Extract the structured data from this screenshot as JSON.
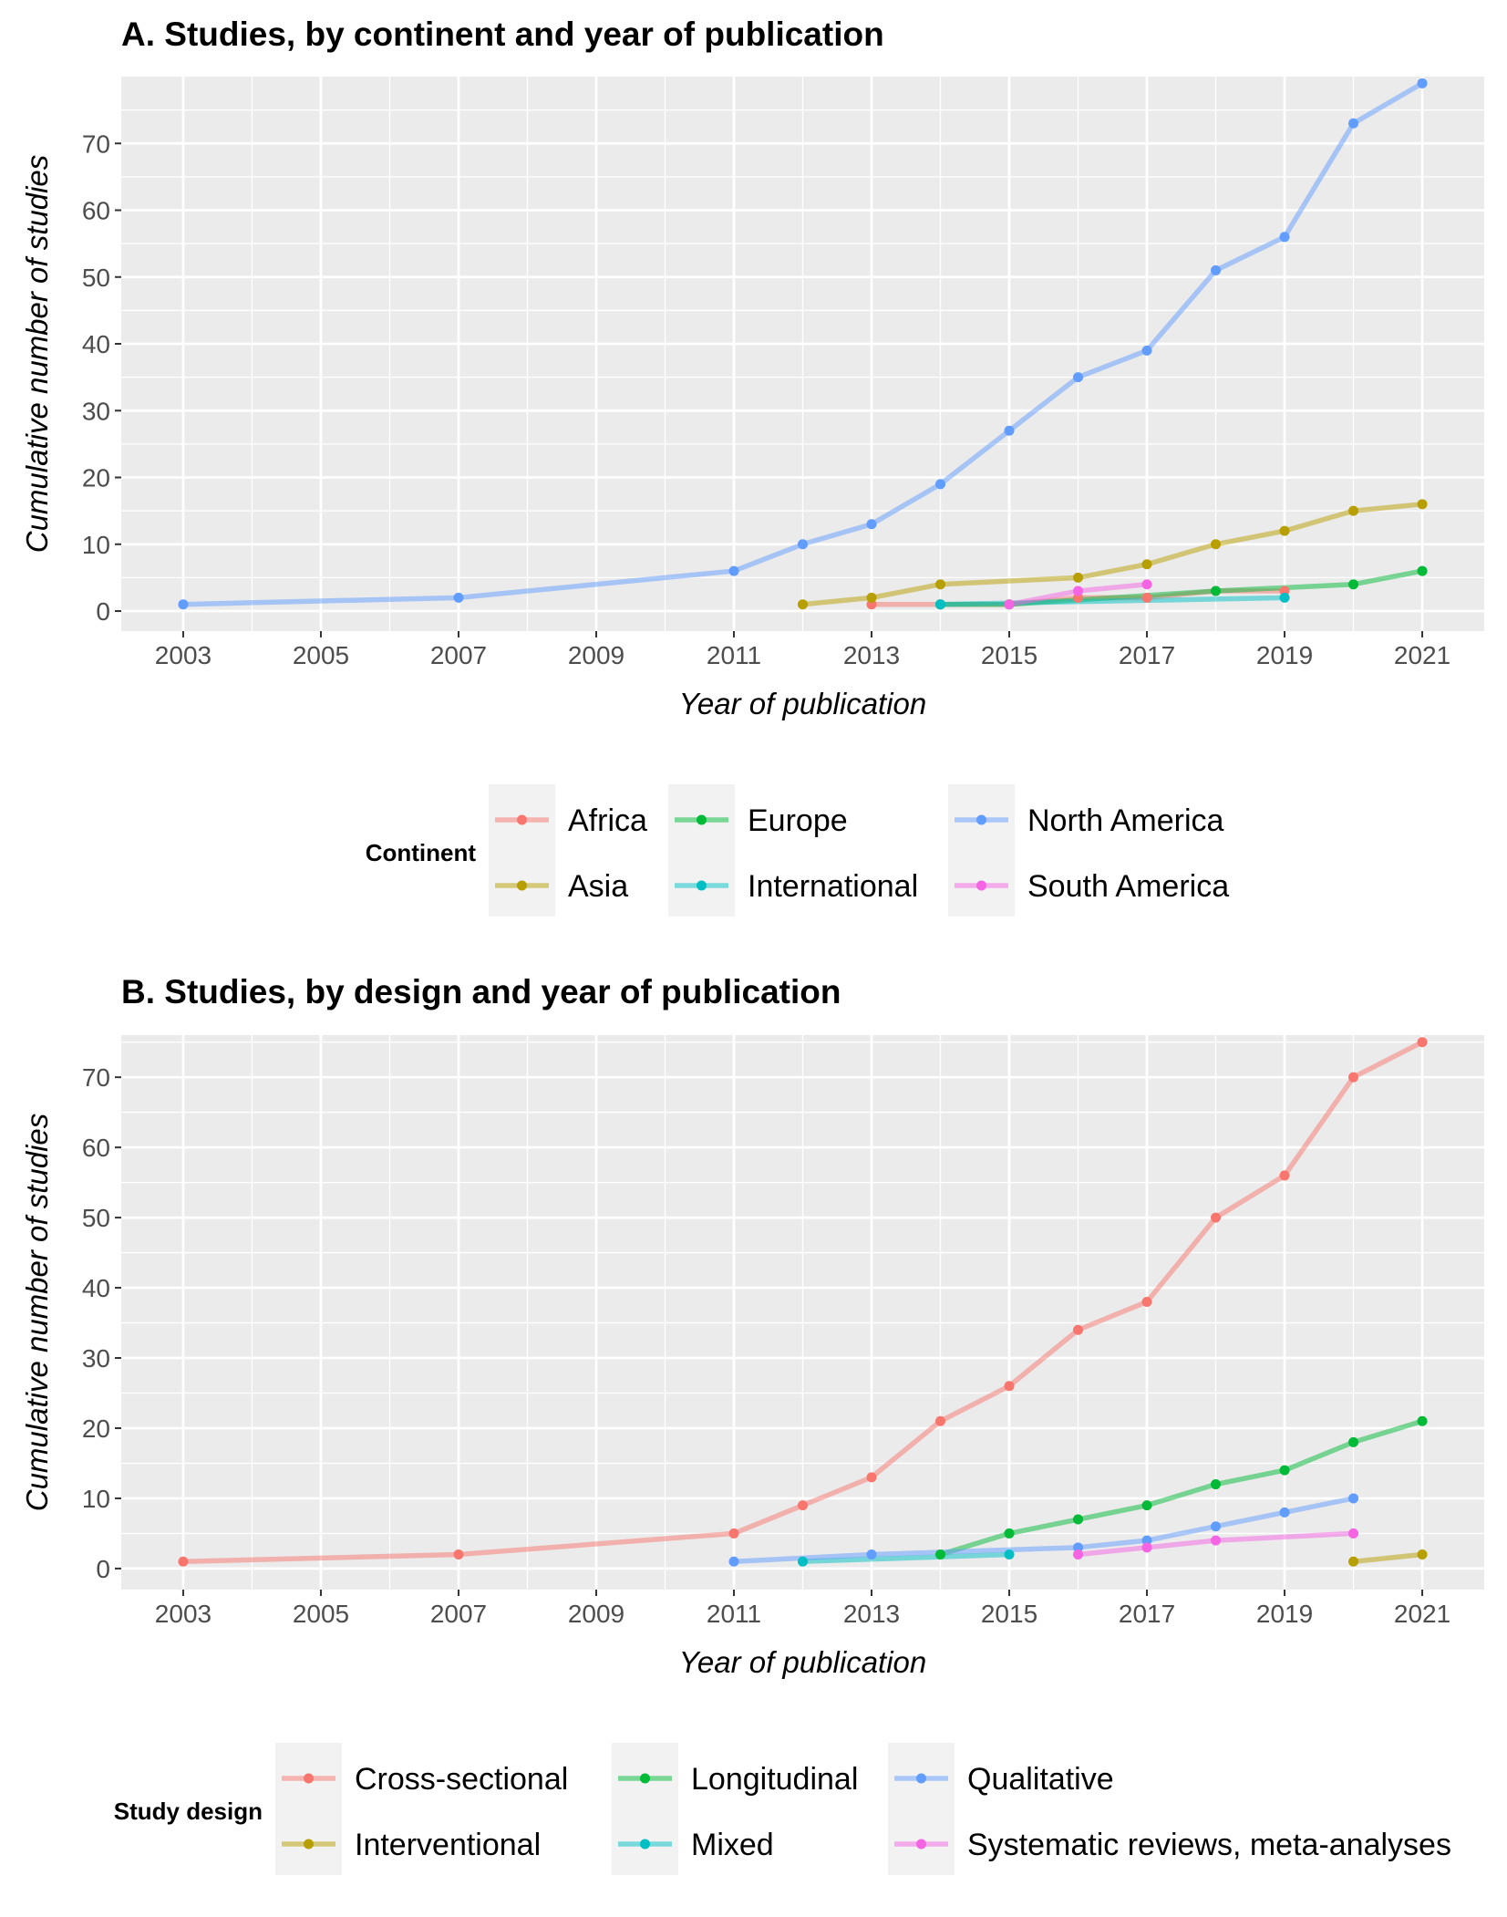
{
  "chart_data": [
    {
      "type": "line",
      "title": "A. Studies, by continent and year of publication",
      "xlabel": "Year of publication",
      "ylabel": "Cumulative number of studies",
      "xlim": [
        2002.1,
        2021.9
      ],
      "ylim": [
        -3,
        80
      ],
      "x_ticks": [
        2003,
        2005,
        2007,
        2009,
        2011,
        2013,
        2015,
        2017,
        2019,
        2021
      ],
      "y_ticks": [
        0,
        10,
        20,
        30,
        40,
        50,
        60,
        70
      ],
      "grid": true,
      "legend": {
        "title": "Continent",
        "position": "bottom",
        "columns": [
          [
            "Africa",
            "Asia"
          ],
          [
            "Europe",
            "International"
          ],
          [
            "North America",
            "South America"
          ]
        ]
      },
      "series": [
        {
          "name": "Africa",
          "color": "#F8766D",
          "x": [
            2013,
            2014,
            2015,
            2016,
            2017,
            2018,
            2019
          ],
          "y": [
            1,
            1,
            1,
            2,
            2,
            3,
            3
          ]
        },
        {
          "name": "Asia",
          "color": "#B79F00",
          "x": [
            2012,
            2013,
            2014,
            2016,
            2017,
            2018,
            2019,
            2020,
            2021
          ],
          "y": [
            1,
            2,
            4,
            5,
            7,
            10,
            12,
            15,
            16
          ]
        },
        {
          "name": "Europe",
          "color": "#00BA38",
          "x": [
            2014,
            2015,
            2018,
            2020,
            2021
          ],
          "y": [
            1,
            1,
            3,
            4,
            6
          ]
        },
        {
          "name": "International",
          "color": "#00BFC4",
          "x": [
            2014,
            2019
          ],
          "y": [
            1,
            2
          ]
        },
        {
          "name": "North America",
          "color": "#619CFF",
          "x": [
            2003,
            2007,
            2011,
            2012,
            2013,
            2014,
            2015,
            2016,
            2017,
            2018,
            2019,
            2020,
            2021
          ],
          "y": [
            1,
            2,
            6,
            10,
            13,
            19,
            27,
            35,
            39,
            51,
            56,
            73,
            79
          ]
        },
        {
          "name": "South America",
          "color": "#F564E3",
          "x": [
            2015,
            2016,
            2017
          ],
          "y": [
            1,
            3,
            4
          ]
        }
      ]
    },
    {
      "type": "line",
      "title": "B. Studies, by design and year of publication",
      "xlabel": "Year of publication",
      "ylabel": "Cumulative number of studies",
      "xlim": [
        2002.1,
        2021.9
      ],
      "ylim": [
        -3,
        76
      ],
      "x_ticks": [
        2003,
        2005,
        2007,
        2009,
        2011,
        2013,
        2015,
        2017,
        2019,
        2021
      ],
      "y_ticks": [
        0,
        10,
        20,
        30,
        40,
        50,
        60,
        70
      ],
      "grid": true,
      "legend": {
        "title": "Study design",
        "position": "bottom",
        "columns": [
          [
            "Cross-sectional",
            "Interventional"
          ],
          [
            "Longitudinal",
            "Mixed"
          ],
          [
            "Qualitative",
            "Systematic reviews, meta-analyses"
          ]
        ]
      },
      "series": [
        {
          "name": "Cross-sectional",
          "color": "#F8766D",
          "x": [
            2003,
            2007,
            2011,
            2012,
            2013,
            2014,
            2015,
            2016,
            2017,
            2018,
            2019,
            2020,
            2021
          ],
          "y": [
            1,
            2,
            5,
            9,
            13,
            21,
            26,
            34,
            38,
            50,
            56,
            70,
            75
          ]
        },
        {
          "name": "Interventional",
          "color": "#B79F00",
          "x": [
            2020,
            2021
          ],
          "y": [
            1,
            2
          ]
        },
        {
          "name": "Longitudinal",
          "color": "#00BA38",
          "x": [
            2014,
            2015,
            2016,
            2017,
            2018,
            2019,
            2020,
            2021
          ],
          "y": [
            2,
            5,
            7,
            9,
            12,
            14,
            18,
            21
          ]
        },
        {
          "name": "Mixed",
          "color": "#00BFC4",
          "x": [
            2012,
            2015
          ],
          "y": [
            1,
            2
          ]
        },
        {
          "name": "Qualitative",
          "color": "#619CFF",
          "x": [
            2011,
            2013,
            2016,
            2017,
            2018,
            2019,
            2020
          ],
          "y": [
            1,
            2,
            3,
            4,
            6,
            8,
            10
          ]
        },
        {
          "name": "Systematic reviews, meta-analyses",
          "color": "#F564E3",
          "x": [
            2016,
            2017,
            2018,
            2020
          ],
          "y": [
            2,
            3,
            4,
            5
          ]
        }
      ]
    }
  ]
}
